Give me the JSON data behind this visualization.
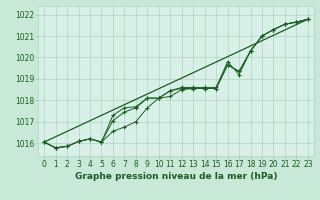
{
  "background_color": "#c8e8d8",
  "plot_bg_color": "#d8f0e8",
  "grid_color": "#b0d4c0",
  "line_color": "#1a5e20",
  "marker_color": "#1a5e20",
  "title": "Graphe pression niveau de la mer (hPa)",
  "ylabel_ticks": [
    1016,
    1017,
    1018,
    1019,
    1020,
    1021,
    1022
  ],
  "xlim": [
    -0.5,
    23.5
  ],
  "ylim": [
    1015.4,
    1022.4
  ],
  "hours": [
    0,
    1,
    2,
    3,
    4,
    5,
    6,
    7,
    8,
    9,
    10,
    11,
    12,
    13,
    14,
    15,
    16,
    17,
    18,
    19,
    20,
    21,
    22,
    23
  ],
  "series1": [
    1016.05,
    1015.78,
    1015.85,
    1016.08,
    1016.2,
    1016.05,
    1016.55,
    1016.75,
    1017.0,
    1017.65,
    1018.1,
    1018.18,
    1018.5,
    1018.55,
    1018.55,
    1018.55,
    1019.65,
    1019.35,
    1020.3,
    1021.0,
    1021.3,
    1021.55,
    1021.65,
    1021.78
  ],
  "series2": [
    1016.05,
    1015.78,
    1015.85,
    1016.08,
    1016.2,
    1016.05,
    1017.05,
    1017.45,
    1017.65,
    1018.1,
    1018.1,
    1018.45,
    1018.55,
    1018.55,
    1018.55,
    1018.55,
    1019.65,
    1019.35,
    1020.3,
    1021.0,
    1021.3,
    1021.55,
    1021.65,
    1021.78
  ],
  "series3": [
    1016.05,
    1015.78,
    1015.85,
    1016.08,
    1016.2,
    1016.05,
    1017.3,
    1017.65,
    1017.7,
    1018.1,
    1018.1,
    1018.45,
    1018.6,
    1018.6,
    1018.6,
    1018.6,
    1019.8,
    1019.2,
    1020.3,
    1021.0,
    1021.3,
    1021.55,
    1021.65,
    1021.78
  ],
  "trend_x": [
    0,
    23
  ],
  "trend_y": [
    1016.05,
    1021.78
  ],
  "title_fontsize": 6.5,
  "tick_fontsize": 5.5,
  "xlabel_fontsize": 6.5
}
